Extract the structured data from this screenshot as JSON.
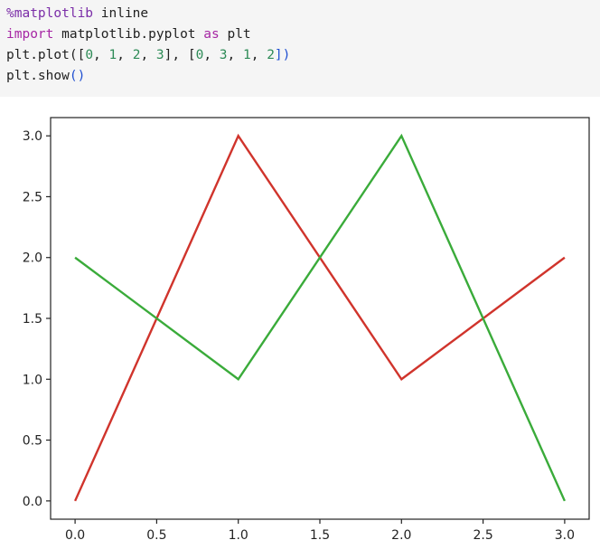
{
  "code_cell": {
    "lines": [
      [
        {
          "text": "%matplotlib",
          "kind": "magic"
        },
        {
          "text": " inline",
          "kind": "plain"
        }
      ],
      [
        {
          "text": "import",
          "kind": "kw"
        },
        {
          "text": " matplotlib.pyplot ",
          "kind": "plain"
        },
        {
          "text": "as",
          "kind": "kw"
        },
        {
          "text": " plt",
          "kind": "plain"
        }
      ],
      [
        {
          "text": "plt.plot([",
          "kind": "plain"
        },
        {
          "text": "0",
          "kind": "num"
        },
        {
          "text": ", ",
          "kind": "plain"
        },
        {
          "text": "1",
          "kind": "num"
        },
        {
          "text": ", ",
          "kind": "plain"
        },
        {
          "text": "2",
          "kind": "num"
        },
        {
          "text": ", ",
          "kind": "plain"
        },
        {
          "text": "3",
          "kind": "num"
        },
        {
          "text": "], [",
          "kind": "plain"
        },
        {
          "text": "0",
          "kind": "num"
        },
        {
          "text": ", ",
          "kind": "plain"
        },
        {
          "text": "3",
          "kind": "num"
        },
        {
          "text": ", ",
          "kind": "plain"
        },
        {
          "text": "1",
          "kind": "num"
        },
        {
          "text": ", ",
          "kind": "plain"
        },
        {
          "text": "2",
          "kind": "num"
        },
        {
          "text": "])",
          "kind": "paren"
        }
      ],
      [
        {
          "text": "plt.show",
          "kind": "plain"
        },
        {
          "text": "()",
          "kind": "paren"
        }
      ]
    ]
  },
  "colors": {
    "cell_background": "#f5f5f5",
    "series_red": "#d0342c",
    "series_green": "#3aab3a",
    "axis": "#222222"
  },
  "chart_data": {
    "type": "line",
    "title": "",
    "xlabel": "",
    "ylabel": "",
    "xlim": [
      -0.15,
      3.15
    ],
    "ylim": [
      -0.15,
      3.15
    ],
    "xticks": [
      "0.0",
      "0.5",
      "1.0",
      "1.5",
      "2.0",
      "2.5",
      "3.0"
    ],
    "yticks": [
      "0.0",
      "0.5",
      "1.0",
      "1.5",
      "2.0",
      "2.5",
      "3.0"
    ],
    "grid": false,
    "series": [
      {
        "color": "#d0342c",
        "x": [
          0,
          1,
          2,
          3
        ],
        "y": [
          0,
          3,
          1,
          2
        ]
      },
      {
        "color": "#3aab3a",
        "x": [
          0,
          1,
          2,
          3
        ],
        "y": [
          2,
          1,
          3,
          0
        ]
      }
    ]
  }
}
